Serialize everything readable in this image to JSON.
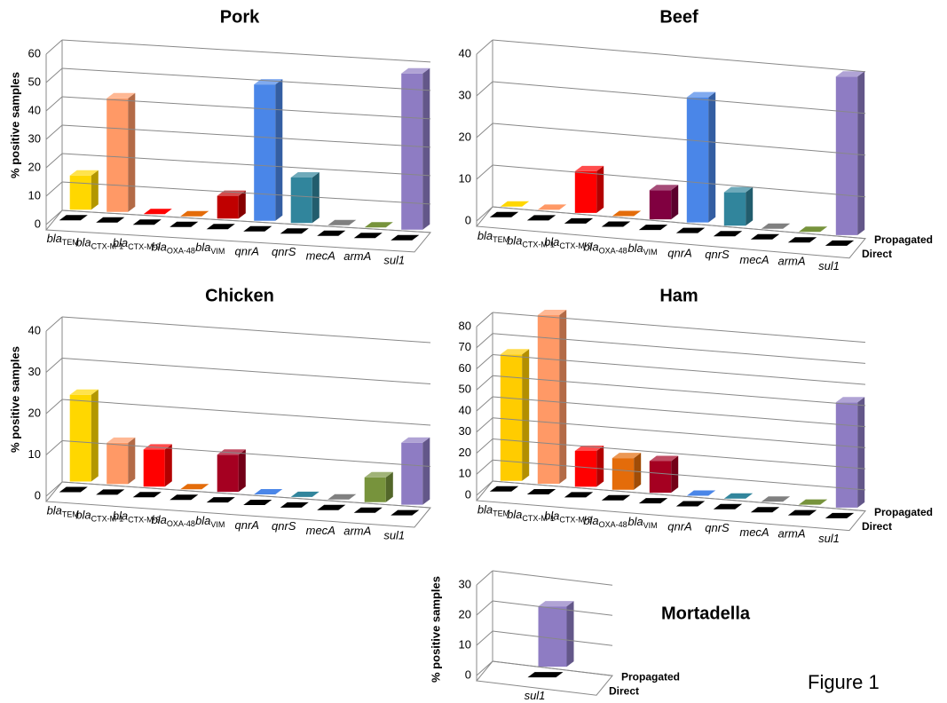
{
  "caption": "Figure 1",
  "chart_data": [
    {
      "type": "bar3d",
      "title": "Pork",
      "ylabel": "% positive samples",
      "categories": [
        "blaTEM",
        "blaCTX-M-1",
        "blaCTX-M-9",
        "blaOXA-48",
        "blaVIM",
        "qnrA",
        "qnrS",
        "mecA",
        "armA",
        "sul1"
      ],
      "series": [
        {
          "name": "Propagated",
          "colors": [
            "#ffd700",
            "#ff9966",
            "#ff0000",
            "#e46c0a",
            "#c00000",
            "#4a86e8",
            "#31859c",
            "#808080",
            "#77933c",
            "#8e7cc3"
          ],
          "values": [
            12,
            40,
            0,
            0,
            8,
            48,
            16,
            0,
            0,
            55
          ]
        },
        {
          "name": "Direct",
          "color": "#000000",
          "values": [
            0,
            0,
            0,
            0,
            0,
            0,
            0,
            0,
            0,
            0
          ]
        }
      ],
      "ylim": [
        0,
        60
      ],
      "yticks": [
        0,
        10,
        20,
        30,
        40,
        50,
        60
      ],
      "legend": false
    },
    {
      "type": "bar3d",
      "title": "Beef",
      "categories": [
        "blaTEM",
        "blaCTX-M-1",
        "blaCTX-M-9",
        "blaOXA-48",
        "blaVIM",
        "qnrA",
        "qnrS",
        "mecA",
        "armA",
        "sul1"
      ],
      "series": [
        {
          "name": "Propagated",
          "colors": [
            "#ffd700",
            "#ff9966",
            "#ff0000",
            "#e46c0a",
            "#800040",
            "#4a86e8",
            "#31859c",
            "#808080",
            "#77933c",
            "#8e7cc3"
          ],
          "values": [
            0,
            0,
            10,
            0,
            7,
            30,
            8,
            0,
            0,
            38
          ]
        },
        {
          "name": "Direct",
          "color": "#000000",
          "values": [
            0,
            0,
            0,
            0,
            0,
            0,
            0,
            0,
            0,
            0
          ]
        }
      ],
      "ylim": [
        0,
        40
      ],
      "yticks": [
        0,
        10,
        20,
        30,
        40
      ],
      "legend": true
    },
    {
      "type": "bar3d",
      "title": "Chicken",
      "ylabel": "% positive samples",
      "categories": [
        "blaTEM",
        "blaCTX-M-1",
        "blaCTX-M-9",
        "blaOXA-48",
        "blaVIM",
        "qnrA",
        "qnrS",
        "mecA",
        "armA",
        "sul1"
      ],
      "series": [
        {
          "name": "Propagated",
          "colors": [
            "#ffd700",
            "#ff9966",
            "#ff0000",
            "#e46c0a",
            "#a50021",
            "#4a86e8",
            "#31859c",
            "#808080",
            "#77933c",
            "#8e7cc3"
          ],
          "values": [
            21,
            10,
            9,
            0,
            9,
            0,
            0,
            0,
            6,
            15
          ]
        },
        {
          "name": "Direct",
          "color": "#000000",
          "values": [
            0,
            0,
            0,
            0,
            0,
            0,
            0,
            0,
            0,
            0
          ]
        }
      ],
      "ylim": [
        0,
        40
      ],
      "yticks": [
        0,
        10,
        20,
        30,
        40
      ],
      "legend": false
    },
    {
      "type": "bar3d",
      "title": "Ham",
      "categories": [
        "blaTEM",
        "blaCTX-M-1",
        "blaCTX-M-9",
        "blaOXA-48",
        "blaVIM",
        "qnrA",
        "qnrS",
        "mecA",
        "armA",
        "sul1"
      ],
      "series": [
        {
          "name": "Propagated",
          "colors": [
            "#ffcc00",
            "#ff9966",
            "#ff0000",
            "#e46c0a",
            "#a50021",
            "#4a86e8",
            "#31859c",
            "#808080",
            "#77933c",
            "#8e7cc3"
          ],
          "values": [
            60,
            80,
            17,
            15,
            15,
            0,
            0,
            0,
            0,
            50
          ]
        },
        {
          "name": "Direct",
          "color": "#000000",
          "values": [
            0,
            0,
            0,
            0,
            0,
            0,
            0,
            0,
            0,
            0
          ]
        }
      ],
      "ylim": [
        0,
        80
      ],
      "yticks": [
        0,
        10,
        20,
        30,
        40,
        50,
        60,
        70,
        80
      ],
      "legend": true
    },
    {
      "type": "bar3d",
      "title": "Mortadella",
      "ylabel": "% positive samples",
      "categories": [
        "sul1"
      ],
      "series": [
        {
          "name": "Propagated",
          "colors": [
            "#8e7cc3"
          ],
          "values": [
            20
          ]
        },
        {
          "name": "Direct",
          "color": "#000000",
          "values": [
            0
          ]
        }
      ],
      "ylim": [
        0,
        30
      ],
      "yticks": [
        0,
        10,
        20,
        30
      ],
      "legend": true
    }
  ]
}
